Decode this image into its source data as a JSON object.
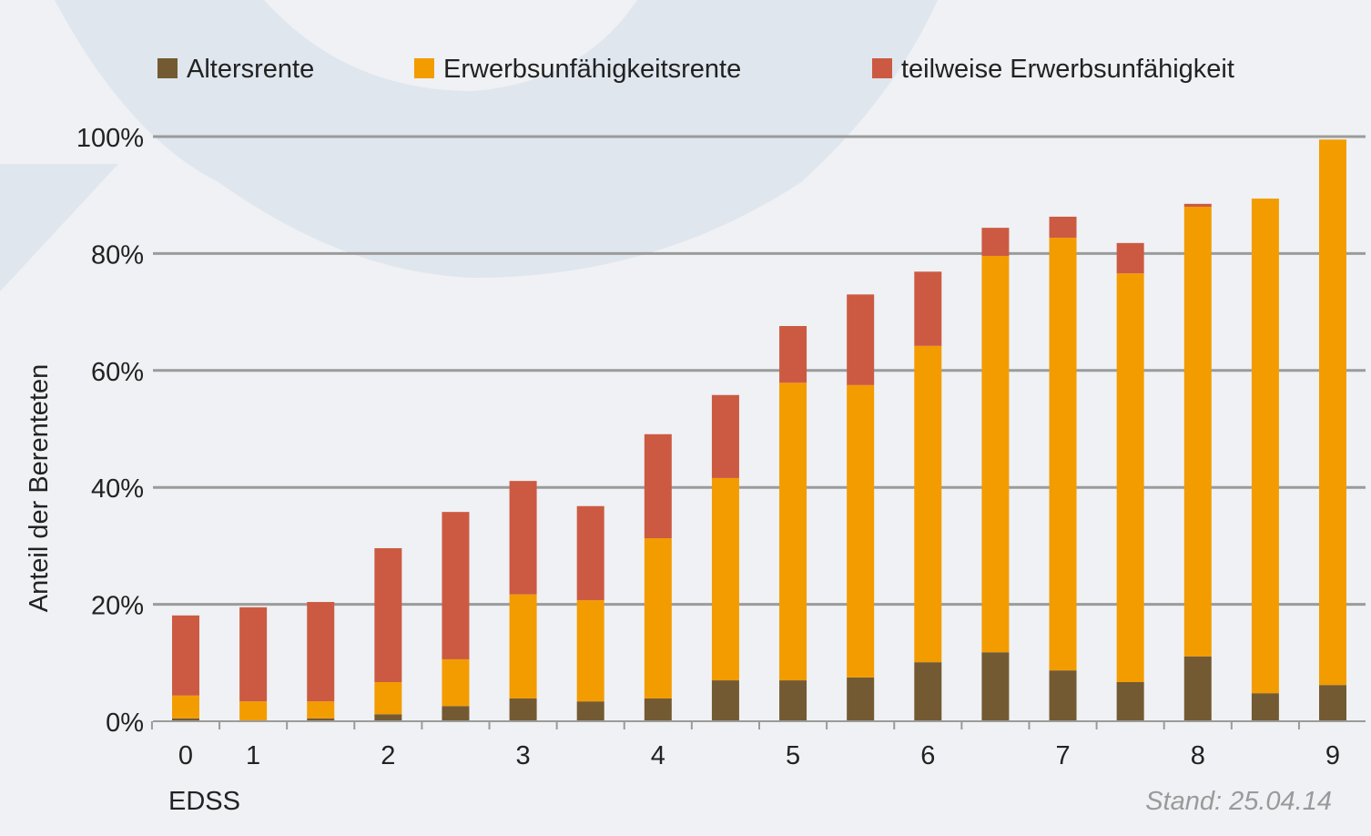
{
  "chart_data": {
    "type": "bar",
    "stacked": true,
    "title": "",
    "xlabel": "EDSS",
    "ylabel": "Anteil der Berenteten",
    "ylim": [
      0,
      100
    ],
    "yticks": [
      "0%",
      "20%",
      "40%",
      "60%",
      "80%",
      "100%"
    ],
    "ytick_values": [
      0,
      20,
      40,
      60,
      80,
      100
    ],
    "grid": true,
    "legend_position": "top",
    "categories": [
      "0",
      "1",
      "1.5",
      "2",
      "2.5",
      "3",
      "3.5",
      "4",
      "4.5",
      "5",
      "5.5",
      "6",
      "6.5",
      "7",
      "7.5",
      "8",
      "8.5",
      "9"
    ],
    "category_labels": [
      "0",
      "1",
      "",
      "2",
      "",
      "3",
      "",
      "4",
      "",
      "5",
      "",
      "6",
      "",
      "7",
      "",
      "8",
      "",
      "9"
    ],
    "series": [
      {
        "name": "Altersrente",
        "color": "#745a32",
        "values": [
          0.5,
          0,
          0.5,
          1.2,
          2.6,
          3.9,
          3.4,
          3.9,
          7.0,
          7.0,
          7.5,
          10.1,
          11.8,
          8.7,
          6.7,
          11.1,
          4.8,
          6.2
        ]
      },
      {
        "name": "Erwerbsunfähigkeitsrente",
        "color": "#f39c00",
        "values": [
          3.9,
          3.4,
          2.9,
          5.5,
          8.0,
          17.8,
          17.3,
          27.4,
          34.6,
          50.9,
          50.0,
          54.1,
          67.8,
          74.0,
          69.9,
          76.9,
          84.6,
          93.3
        ]
      },
      {
        "name": "teilweise Erwerbsunfähigkeit",
        "color": "#cc5a42",
        "values": [
          13.7,
          16.1,
          17.0,
          22.9,
          25.2,
          19.4,
          16.1,
          17.8,
          14.2,
          9.7,
          15.5,
          12.7,
          4.8,
          3.6,
          5.2,
          0.5,
          0,
          0
        ]
      }
    ],
    "annotation": "Stand: 25.04.14"
  }
}
